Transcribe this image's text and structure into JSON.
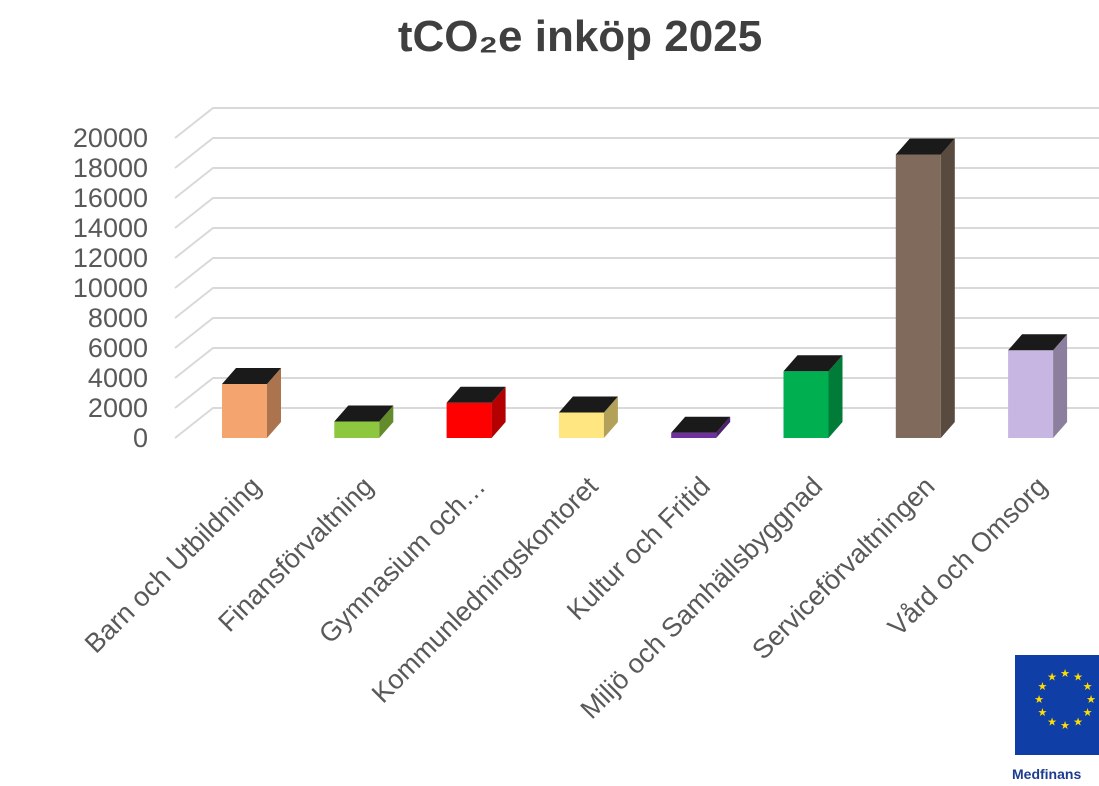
{
  "chart_data": {
    "type": "bar",
    "title": "tCO₂e inköp 2025",
    "categories": [
      "Barn och Utbildning",
      "Finansförvaltning",
      "Gymnasium och…",
      "Kommunledningskontoret",
      "Kultur och Fritid",
      "Miljö och Samhällsbyggnad",
      "Serviceförvaltningen",
      "Vård och Omsorg"
    ],
    "values": [
      3600,
      1100,
      2350,
      1700,
      350,
      4450,
      18900,
      5850
    ],
    "colors": [
      "#f4a46f",
      "#8dc63f",
      "#ff0000",
      "#ffe680",
      "#7030a0",
      "#00b050",
      "#7f6a5b",
      "#c8b6e2"
    ],
    "yticks": [
      "0",
      "2000",
      "4000",
      "6000",
      "8000",
      "10000",
      "12000",
      "14000",
      "16000",
      "18000",
      "20000"
    ],
    "ylim": [
      0,
      20000
    ],
    "xlabel": "",
    "ylabel": "",
    "grid": true,
    "legend": "none"
  },
  "logo": {
    "name": "eu-flag",
    "caption": "Medfinans"
  }
}
